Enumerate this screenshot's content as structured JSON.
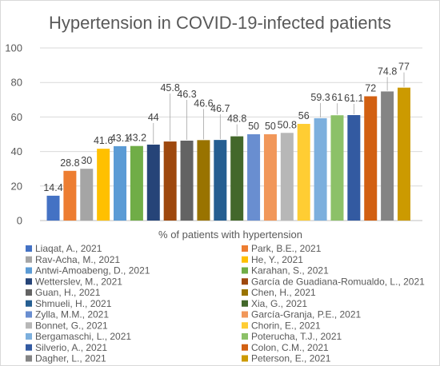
{
  "chart_data": {
    "type": "bar",
    "title": "Hypertension in COVID-19-infected patients",
    "xlabel": "% of patients with hypertension",
    "ylabel": "",
    "ylim": [
      0,
      100
    ],
    "yticks": [
      0,
      20,
      40,
      60,
      80,
      100
    ],
    "grid": true,
    "legend_position": "bottom",
    "series": [
      {
        "name": "Liaqat, A., 2021",
        "value": 14.4,
        "label": "14.4",
        "color": "#4472c4"
      },
      {
        "name": "Park, B.E., 2021",
        "value": 28.8,
        "label": "28.8",
        "color": "#ed7d31"
      },
      {
        "name": "Rav-Acha, M., 2021",
        "value": 30,
        "label": "30",
        "color": "#a5a5a5"
      },
      {
        "name": "He, Y., 2021",
        "value": 41.6,
        "label": "41.6",
        "color": "#ffc000"
      },
      {
        "name": "Antwi-Amoabeng, D., 2021",
        "value": 43.1,
        "label": "43.1",
        "color": "#5b9bd5"
      },
      {
        "name": "Karahan, S., 2021",
        "value": 43.2,
        "label": "43.2",
        "color": "#70ad47"
      },
      {
        "name": "Wetterslev, M., 2021",
        "value": 44,
        "label": "44",
        "color": "#264478"
      },
      {
        "name": "García de Guadiana-Romualdo, L., 2021",
        "value": 45.8,
        "label": "45.8",
        "color": "#9e480e"
      },
      {
        "name": "Guan, H., 2021",
        "value": 46.3,
        "label": "46.3",
        "color": "#636363"
      },
      {
        "name": "Chen, H., 2021",
        "value": 46.6,
        "label": "46.6",
        "color": "#997300"
      },
      {
        "name": "Shmueli, H., 2021",
        "value": 46.7,
        "label": "46.7",
        "color": "#255e91"
      },
      {
        "name": "Xia, G., 2021",
        "value": 48.8,
        "label": "48.8",
        "color": "#43682b"
      },
      {
        "name": "Zylla, M.M., 2021",
        "value": 50,
        "label": "50",
        "color": "#698ed0"
      },
      {
        "name": "García-Granja, P.E., 2021",
        "value": 50,
        "label": "50",
        "color": "#f1975a"
      },
      {
        "name": "Bonnet, G., 2021",
        "value": 50.8,
        "label": "50.8",
        "color": "#b7b7b7"
      },
      {
        "name": "Chorin, E., 2021",
        "value": 56,
        "label": "56",
        "color": "#ffcd33"
      },
      {
        "name": "Bergamaschi, L., 2021",
        "value": 59.3,
        "label": "59.3",
        "color": "#7cafdd"
      },
      {
        "name": "Poterucha, T.J., 2021",
        "value": 61,
        "label": "61",
        "color": "#8cc168"
      },
      {
        "name": "Silverio, A., 2021",
        "value": 61.1,
        "label": "61.1",
        "color": "#335aa1"
      },
      {
        "name": "Colon, C.M., 2021",
        "value": 72,
        "label": "72",
        "color": "#d26012"
      },
      {
        "name": "Dagher, L., 2021",
        "value": 74.8,
        "label": "74.8",
        "color": "#848484"
      },
      {
        "name": "Peterson, E., 2021",
        "value": 77,
        "label": "77",
        "color": "#cc9a00"
      }
    ]
  }
}
